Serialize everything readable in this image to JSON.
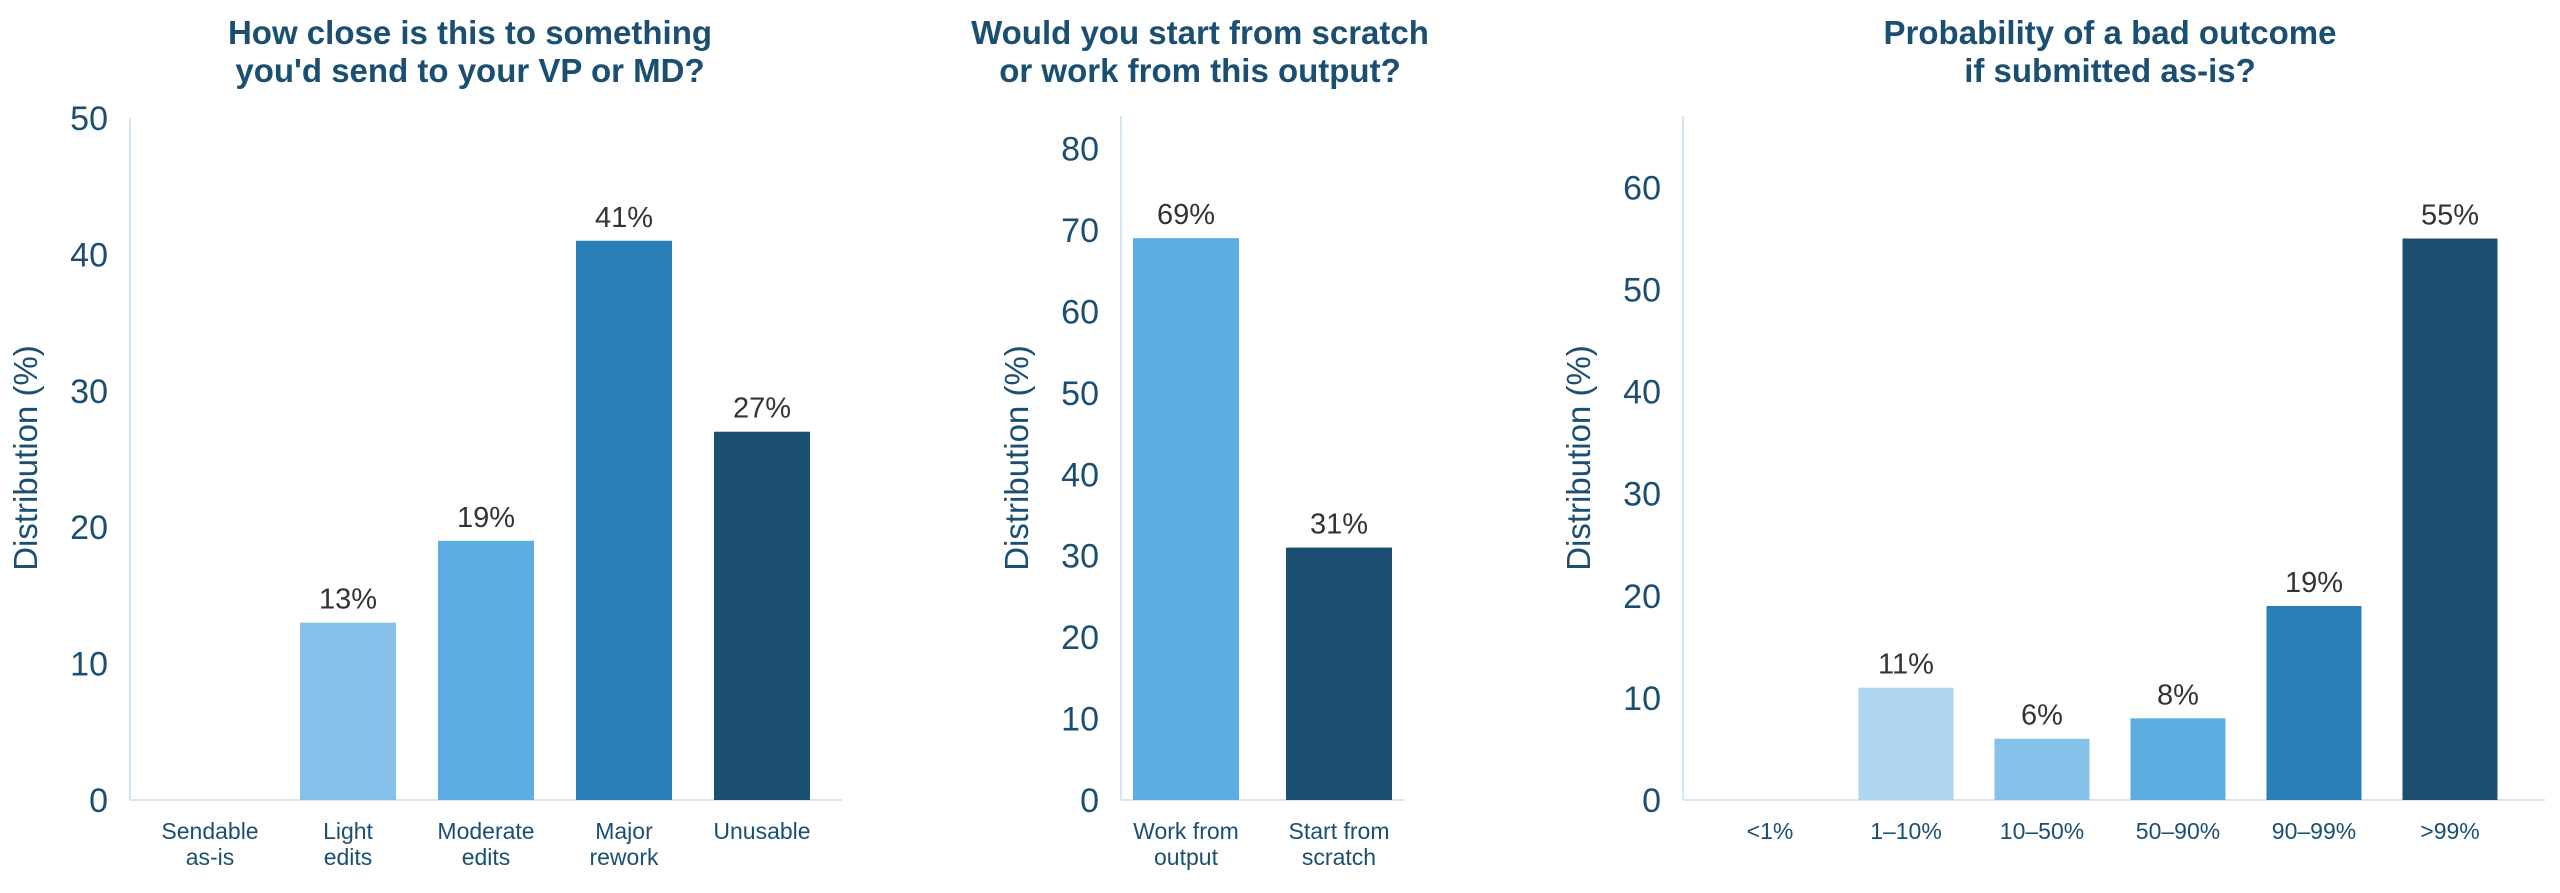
{
  "chart_data": [
    {
      "type": "bar",
      "title": [
        "How close is this to something",
        "you'd send to your VP or MD?"
      ],
      "xlabel": "",
      "ylabel": "Distribution (%)",
      "ylim": [
        0,
        50
      ],
      "yticks": [
        0,
        10,
        20,
        30,
        40,
        50
      ],
      "categories": [
        [
          "Sendable",
          "as-is"
        ],
        [
          "Light",
          "edits"
        ],
        [
          "Moderate",
          "edits"
        ],
        [
          "Major",
          "rework"
        ],
        [
          "Unusable"
        ]
      ],
      "values": [
        0,
        13,
        19,
        41,
        27
      ],
      "data_labels": [
        "",
        "13%",
        "19%",
        "41%",
        "27%"
      ],
      "colors": [
        "#aed6f1",
        "#85c1e9",
        "#5dade2",
        "#2980b9",
        "#1b4f72"
      ]
    },
    {
      "type": "bar",
      "title": [
        "Would you start from scratch",
        "or work from this output?"
      ],
      "xlabel": "",
      "ylabel": "Distribution (%)",
      "ylim": [
        0,
        84
      ],
      "yticks": [
        0,
        10,
        20,
        30,
        40,
        50,
        60,
        70,
        80
      ],
      "categories": [
        [
          "Work from",
          "output"
        ],
        [
          "Start from",
          "scratch"
        ]
      ],
      "values": [
        69,
        31
      ],
      "data_labels": [
        "69%",
        "31%"
      ],
      "colors": [
        "#5dade2",
        "#1b4f72"
      ]
    },
    {
      "type": "bar",
      "title": [
        "Probability of a bad outcome",
        "if submitted as-is?"
      ],
      "xlabel": "",
      "ylabel": "Distribution (%)",
      "ylim": [
        0,
        67
      ],
      "yticks": [
        0,
        10,
        20,
        30,
        40,
        50,
        60
      ],
      "categories": [
        [
          "<1%"
        ],
        [
          "1–10%"
        ],
        [
          "10–50%"
        ],
        [
          "50–90%"
        ],
        [
          "90–99%"
        ],
        [
          ">99%"
        ]
      ],
      "values": [
        0,
        11,
        6,
        8,
        19,
        55
      ],
      "data_labels": [
        "",
        "11%",
        "6%",
        "8%",
        "19%",
        "55%"
      ],
      "colors": [
        "#d6eaf8",
        "#aed6f1",
        "#85c1e9",
        "#5dade2",
        "#2980b9",
        "#1b4f72"
      ]
    }
  ]
}
